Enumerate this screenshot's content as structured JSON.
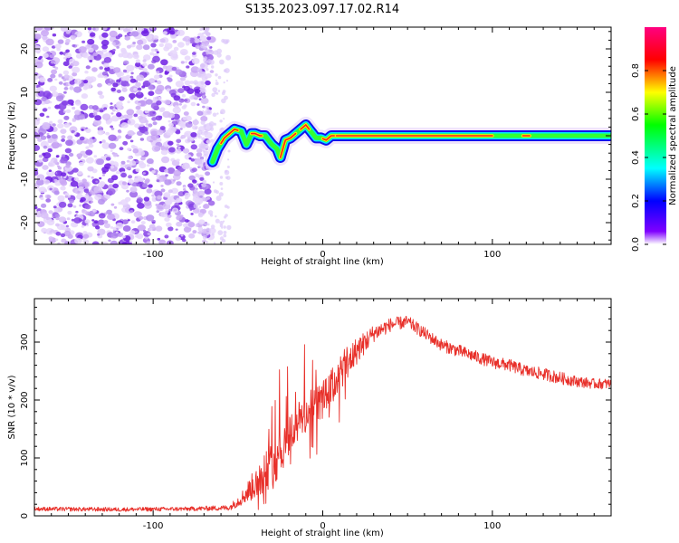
{
  "title": "S135.2023.097.17.02.R14",
  "chart_data": [
    {
      "type": "heatmap",
      "xlabel": "Height of straight line (km)",
      "ylabel": "Frequency (Hz)",
      "xlim": [
        -170,
        170
      ],
      "ylim": [
        -25,
        25
      ],
      "x_ticks": [
        -100,
        0,
        100
      ],
      "y_ticks": [
        -20,
        -10,
        0,
        10,
        20
      ],
      "colorbar": {
        "label": "Normalized spectral amplitude",
        "range": [
          0,
          1
        ],
        "ticks": [
          "0.0",
          "0.2",
          "0.4",
          "0.6",
          "0.8"
        ],
        "colors": [
          "#ffffff",
          "#7f00ff",
          "#0000ff",
          "#00ffff",
          "#00ff00",
          "#ffff00",
          "#ff0000",
          "#ff0080"
        ]
      },
      "noise_region_x": [
        -170,
        -65
      ],
      "ridge": {
        "x": [
          -65,
          -62,
          -58,
          -55,
          -52,
          -48,
          -45,
          -42,
          -40,
          -37,
          -34,
          -30,
          -27,
          -25,
          -22,
          -19,
          -16,
          -13,
          -10,
          -7,
          -4,
          -1,
          2,
          5,
          8,
          20,
          60,
          100,
          140,
          170
        ],
        "y": [
          -6,
          -3,
          -0.5,
          0.5,
          1.5,
          1,
          -2,
          0.5,
          0.5,
          0,
          0,
          -2,
          -3,
          -5,
          -1,
          -0.5,
          0.5,
          1.5,
          2.5,
          1,
          -0.5,
          -0.5,
          -1,
          0,
          0,
          0,
          0,
          0,
          0,
          0
        ]
      }
    },
    {
      "type": "line",
      "xlabel": "Height of straight line (km)",
      "ylabel": "SNR (10 * v/v)",
      "xlim": [
        -170,
        170
      ],
      "ylim": [
        0,
        375
      ],
      "x_ticks": [
        -100,
        0,
        100
      ],
      "y_ticks": [
        0,
        100,
        200,
        300
      ],
      "color": "#e8302a",
      "envelope": {
        "x": [
          -170,
          -120,
          -80,
          -55,
          -48,
          -40,
          -35,
          -30,
          -25,
          -20,
          -15,
          -10,
          -5,
          0,
          5,
          10,
          15,
          20,
          30,
          40,
          50,
          60,
          70,
          80,
          90,
          100,
          110,
          120,
          130,
          140,
          150,
          160,
          170
        ],
        "y": [
          12,
          11,
          12,
          14,
          30,
          55,
          75,
          85,
          110,
          140,
          160,
          175,
          190,
          200,
          220,
          245,
          265,
          285,
          315,
          330,
          335,
          315,
          295,
          285,
          275,
          265,
          260,
          250,
          245,
          238,
          232,
          228,
          228
        ],
        "noise": [
          6,
          6,
          6,
          8,
          20,
          45,
          60,
          70,
          70,
          65,
          60,
          60,
          55,
          55,
          55,
          55,
          50,
          40,
          25,
          20,
          18,
          18,
          18,
          18,
          18,
          18,
          18,
          18,
          18,
          18,
          16,
          15,
          15
        ]
      }
    }
  ]
}
